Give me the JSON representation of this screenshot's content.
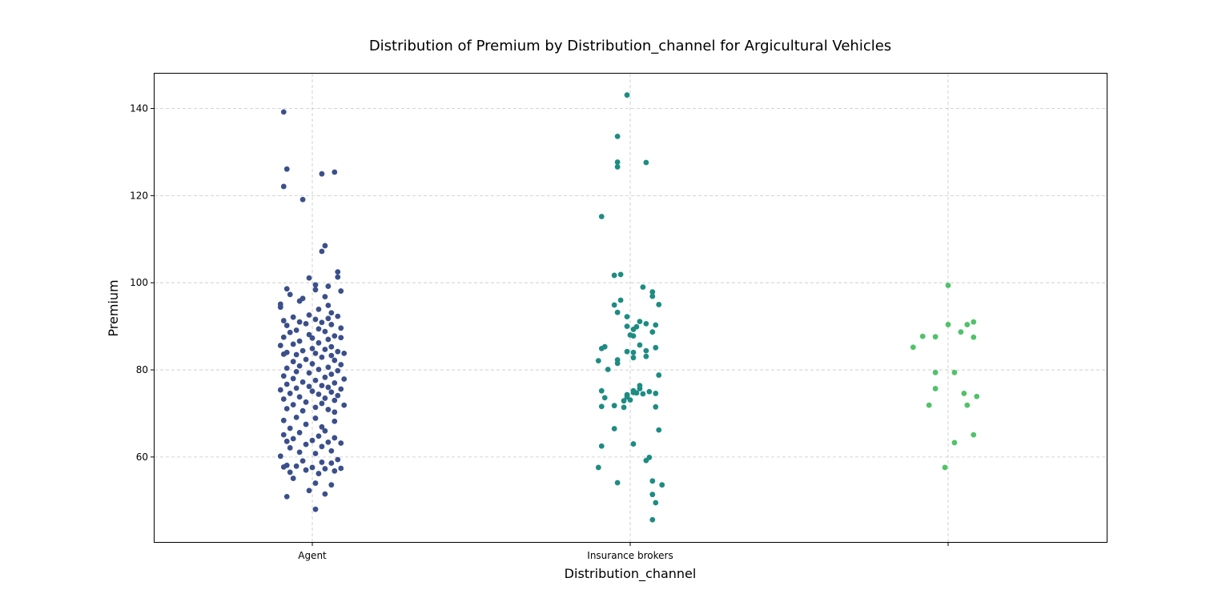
{
  "chart_data": {
    "type": "scatter",
    "subtype": "strip",
    "title": "Distribution of Premium by Distribution_channel for Argicultural Vehicles",
    "xlabel": "Distribution_channel",
    "ylabel": "Premium",
    "categories": [
      "Agent",
      "Insurance brokers",
      ""
    ],
    "ylim": [
      40.5,
      148
    ],
    "yticks": [
      60,
      80,
      100,
      120,
      140
    ],
    "grid": true,
    "legend": "none",
    "colors": [
      "#3b4f8a",
      "#1e8c83",
      "#50c26a"
    ],
    "series": [
      {
        "category": "Agent",
        "points": [
          [
            -0.09,
            139.2
          ],
          [
            0.07,
            125.4
          ],
          [
            0.03,
            125.0
          ],
          [
            -0.08,
            126.1
          ],
          [
            -0.09,
            122.1
          ],
          [
            -0.03,
            119.1
          ],
          [
            0.04,
            108.5
          ],
          [
            0.03,
            107.2
          ],
          [
            0.08,
            102.5
          ],
          [
            0.08,
            101.3
          ],
          [
            -0.01,
            101.1
          ],
          [
            0.01,
            99.5
          ],
          [
            0.05,
            99.2
          ],
          [
            0.09,
            98.1
          ],
          [
            -0.08,
            98.6
          ],
          [
            0.01,
            98.4
          ],
          [
            -0.07,
            97.3
          ],
          [
            0.04,
            96.8
          ],
          [
            -0.03,
            96.4
          ],
          [
            -0.1,
            95.1
          ],
          [
            -0.04,
            95.8
          ],
          [
            0.05,
            94.8
          ],
          [
            -0.1,
            94.4
          ],
          [
            0.02,
            93.9
          ],
          [
            0.06,
            93.1
          ],
          [
            -0.06,
            92.1
          ],
          [
            -0.01,
            92.6
          ],
          [
            0.08,
            92.3
          ],
          [
            -0.09,
            91.3
          ],
          [
            0.01,
            91.6
          ],
          [
            0.05,
            91.8
          ],
          [
            -0.04,
            91.0
          ],
          [
            0.03,
            90.9
          ],
          [
            -0.08,
            90.2
          ],
          [
            -0.02,
            90.6
          ],
          [
            0.06,
            90.4
          ],
          [
            0.09,
            89.6
          ],
          [
            -0.05,
            89.1
          ],
          [
            0.02,
            89.4
          ],
          [
            -0.07,
            88.6
          ],
          [
            0.04,
            88.8
          ],
          [
            -0.01,
            88.1
          ],
          [
            0.07,
            87.8
          ],
          [
            -0.09,
            87.5
          ],
          [
            0.0,
            87.3
          ],
          [
            0.05,
            87.0
          ],
          [
            -0.04,
            86.6
          ],
          [
            0.09,
            87.4
          ],
          [
            -0.06,
            85.9
          ],
          [
            0.02,
            86.2
          ],
          [
            0.06,
            85.3
          ],
          [
            -0.1,
            85.6
          ],
          [
            0.0,
            84.9
          ],
          [
            -0.03,
            84.4
          ],
          [
            0.04,
            84.7
          ],
          [
            0.08,
            84.2
          ],
          [
            -0.08,
            84.0
          ],
          [
            -0.05,
            83.5
          ],
          [
            0.01,
            83.8
          ],
          [
            0.06,
            83.3
          ],
          [
            0.1,
            83.8
          ],
          [
            -0.09,
            83.6
          ],
          [
            0.03,
            82.9
          ],
          [
            -0.02,
            82.4
          ],
          [
            0.07,
            82.2
          ],
          [
            -0.06,
            81.9
          ],
          [
            0.0,
            81.4
          ],
          [
            0.09,
            81.2
          ],
          [
            -0.04,
            80.9
          ],
          [
            0.05,
            80.6
          ],
          [
            -0.08,
            80.4
          ],
          [
            0.02,
            80.1
          ],
          [
            0.08,
            79.8
          ],
          [
            -0.05,
            79.6
          ],
          [
            -0.01,
            79.3
          ],
          [
            0.06,
            79.0
          ],
          [
            -0.09,
            78.6
          ],
          [
            0.04,
            78.3
          ],
          [
            -0.06,
            78.0
          ],
          [
            0.1,
            77.9
          ],
          [
            0.01,
            77.6
          ],
          [
            -0.03,
            77.2
          ],
          [
            0.07,
            77.0
          ],
          [
            -0.08,
            76.7
          ],
          [
            0.03,
            76.4
          ],
          [
            -0.01,
            76.2
          ],
          [
            0.05,
            76.0
          ],
          [
            -0.05,
            75.8
          ],
          [
            0.09,
            75.6
          ],
          [
            -0.1,
            75.4
          ],
          [
            0.0,
            75.1
          ],
          [
            0.06,
            74.9
          ],
          [
            -0.07,
            74.6
          ],
          [
            0.02,
            74.4
          ],
          [
            0.08,
            74.1
          ],
          [
            -0.04,
            73.8
          ],
          [
            0.04,
            73.5
          ],
          [
            -0.09,
            73.3
          ],
          [
            0.07,
            73.0
          ],
          [
            -0.02,
            72.6
          ],
          [
            0.03,
            72.3
          ],
          [
            -0.06,
            72.0
          ],
          [
            0.1,
            71.9
          ],
          [
            0.01,
            71.4
          ],
          [
            -0.08,
            71.1
          ],
          [
            0.05,
            70.9
          ],
          [
            -0.03,
            70.6
          ],
          [
            0.07,
            70.3
          ],
          [
            -0.05,
            69.1
          ],
          [
            0.01,
            68.9
          ],
          [
            -0.09,
            68.4
          ],
          [
            0.07,
            68.2
          ],
          [
            -0.02,
            67.5
          ],
          [
            0.03,
            66.9
          ],
          [
            -0.07,
            66.6
          ],
          [
            0.04,
            66.0
          ],
          [
            -0.04,
            65.6
          ],
          [
            -0.09,
            65.1
          ],
          [
            0.02,
            64.8
          ],
          [
            0.07,
            64.4
          ],
          [
            -0.06,
            64.2
          ],
          [
            0.0,
            63.8
          ],
          [
            0.05,
            63.4
          ],
          [
            -0.08,
            63.6
          ],
          [
            0.09,
            63.2
          ],
          [
            -0.02,
            62.9
          ],
          [
            0.03,
            62.4
          ],
          [
            -0.07,
            62.1
          ],
          [
            0.06,
            61.4
          ],
          [
            -0.04,
            61.1
          ],
          [
            0.01,
            60.8
          ],
          [
            -0.1,
            60.2
          ],
          [
            0.08,
            59.4
          ],
          [
            -0.03,
            59.1
          ],
          [
            0.03,
            58.8
          ],
          [
            0.06,
            58.6
          ],
          [
            -0.08,
            58.1
          ],
          [
            -0.05,
            57.9
          ],
          [
            0.0,
            57.6
          ],
          [
            0.09,
            57.4
          ],
          [
            -0.09,
            57.7
          ],
          [
            0.04,
            57.3
          ],
          [
            -0.02,
            57.0
          ],
          [
            0.07,
            56.8
          ],
          [
            -0.07,
            56.5
          ],
          [
            0.02,
            56.2
          ],
          [
            -0.06,
            55.1
          ],
          [
            0.01,
            54.0
          ],
          [
            0.06,
            53.6
          ],
          [
            -0.01,
            52.3
          ],
          [
            0.04,
            51.5
          ],
          [
            -0.08,
            50.9
          ],
          [
            0.01,
            48.0
          ]
        ]
      },
      {
        "category": "Insurance brokers",
        "points": [
          [
            -0.01,
            143.1
          ],
          [
            -0.04,
            133.6
          ],
          [
            0.05,
            127.6
          ],
          [
            -0.04,
            127.7
          ],
          [
            -0.04,
            126.6
          ],
          [
            -0.09,
            115.2
          ],
          [
            -0.03,
            101.9
          ],
          [
            -0.05,
            101.7
          ],
          [
            0.04,
            99.0
          ],
          [
            0.07,
            97.9
          ],
          [
            0.07,
            96.9
          ],
          [
            -0.03,
            96.0
          ],
          [
            0.09,
            95.0
          ],
          [
            -0.05,
            94.9
          ],
          [
            -0.04,
            93.2
          ],
          [
            -0.01,
            92.2
          ],
          [
            0.03,
            91.1
          ],
          [
            0.05,
            90.6
          ],
          [
            0.08,
            90.3
          ],
          [
            -0.01,
            90.0
          ],
          [
            0.02,
            89.9
          ],
          [
            0.01,
            89.3
          ],
          [
            0.07,
            88.7
          ],
          [
            0.0,
            88.0
          ],
          [
            0.01,
            87.8
          ],
          [
            0.03,
            85.7
          ],
          [
            -0.09,
            84.9
          ],
          [
            -0.08,
            85.3
          ],
          [
            0.08,
            85.1
          ],
          [
            0.05,
            84.4
          ],
          [
            0.01,
            84.0
          ],
          [
            -0.01,
            84.2
          ],
          [
            0.05,
            83.1
          ],
          [
            0.01,
            82.8
          ],
          [
            -0.04,
            82.3
          ],
          [
            -0.1,
            82.1
          ],
          [
            -0.04,
            81.5
          ],
          [
            -0.07,
            80.1
          ],
          [
            0.09,
            78.8
          ],
          [
            0.03,
            76.4
          ],
          [
            0.03,
            75.7
          ],
          [
            0.01,
            75.2
          ],
          [
            0.06,
            75.0
          ],
          [
            0.08,
            74.6
          ],
          [
            0.04,
            74.5
          ],
          [
            0.02,
            74.7
          ],
          [
            -0.01,
            74.3
          ],
          [
            0.01,
            74.8
          ],
          [
            -0.09,
            75.2
          ],
          [
            -0.01,
            73.8
          ],
          [
            -0.08,
            73.6
          ],
          [
            0.0,
            73.1
          ],
          [
            -0.02,
            72.9
          ],
          [
            -0.05,
            71.8
          ],
          [
            -0.09,
            71.6
          ],
          [
            -0.02,
            71.4
          ],
          [
            0.08,
            71.5
          ],
          [
            -0.05,
            66.5
          ],
          [
            0.09,
            66.2
          ],
          [
            0.01,
            63.0
          ],
          [
            -0.09,
            62.5
          ],
          [
            0.06,
            59.9
          ],
          [
            0.05,
            59.2
          ],
          [
            -0.1,
            57.6
          ],
          [
            -0.04,
            54.1
          ],
          [
            0.07,
            54.5
          ],
          [
            0.1,
            53.6
          ],
          [
            0.07,
            51.4
          ],
          [
            0.08,
            49.5
          ],
          [
            0.07,
            45.6
          ]
        ]
      },
      {
        "category": "",
        "points": [
          [
            0.0,
            99.4
          ],
          [
            0.08,
            91.0
          ],
          [
            0.06,
            90.4
          ],
          [
            0.0,
            90.4
          ],
          [
            0.04,
            88.7
          ],
          [
            -0.08,
            87.7
          ],
          [
            -0.04,
            87.6
          ],
          [
            0.08,
            87.5
          ],
          [
            -0.11,
            85.2
          ],
          [
            -0.04,
            79.4
          ],
          [
            0.02,
            79.4
          ],
          [
            -0.04,
            75.7
          ],
          [
            0.05,
            74.6
          ],
          [
            0.09,
            73.9
          ],
          [
            -0.06,
            71.9
          ],
          [
            0.06,
            71.9
          ],
          [
            0.02,
            63.3
          ],
          [
            0.08,
            65.1
          ],
          [
            -0.01,
            57.6
          ]
        ]
      }
    ]
  }
}
